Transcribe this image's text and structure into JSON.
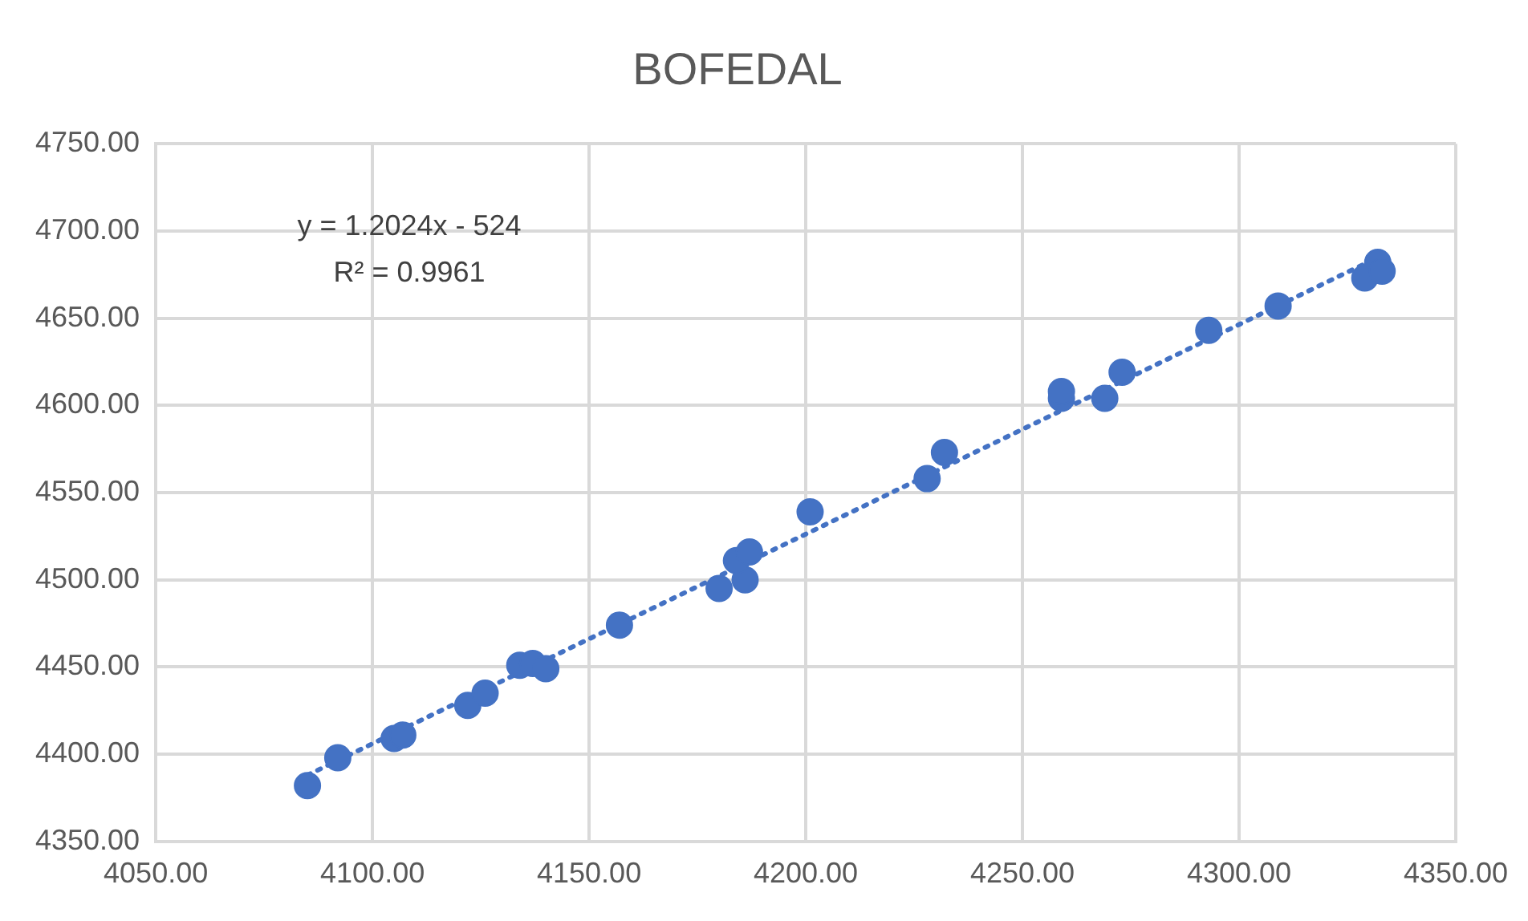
{
  "chart_data": {
    "type": "scatter",
    "title": "BOFEDAL",
    "grid": true,
    "legend": false,
    "marker": "circle",
    "xlim": [
      4050,
      4350
    ],
    "xticks": [
      {
        "value": 4050,
        "label": "4050.00"
      },
      {
        "value": 4100,
        "label": "4100.00"
      },
      {
        "value": 4150,
        "label": "4150.00"
      },
      {
        "value": 4200,
        "label": "4200.00"
      },
      {
        "value": 4250,
        "label": "4250.00"
      },
      {
        "value": 4300,
        "label": "4300.00"
      },
      {
        "value": 4350,
        "label": "4350.00"
      }
    ],
    "ylim": [
      4350,
      4750
    ],
    "yticks": [
      {
        "value": 4350,
        "label": "4350.00"
      },
      {
        "value": 4400,
        "label": "4400.00"
      },
      {
        "value": 4450,
        "label": "4450.00"
      },
      {
        "value": 4500,
        "label": "4500.00"
      },
      {
        "value": 4550,
        "label": "4550.00"
      },
      {
        "value": 4600,
        "label": "4600.00"
      },
      {
        "value": 4650,
        "label": "4650.00"
      },
      {
        "value": 4700,
        "label": "4700.00"
      },
      {
        "value": 4750,
        "label": "4750.00"
      }
    ],
    "annotations": [
      "y = 1.2024x - 524",
      "R² = 0.9961"
    ],
    "series": [
      {
        "color": "#4472c4",
        "x": [
          4085,
          4092,
          4105,
          4107,
          4122,
          4126,
          4134,
          4137,
          4140,
          4157,
          4180,
          4186,
          4184,
          4187,
          4201,
          4228,
          4232,
          4259,
          4259,
          4269,
          4273,
          4293,
          4309,
          4329,
          4332,
          4333
        ],
        "values": [
          4382,
          4398,
          4409,
          4411,
          4428,
          4435,
          4451,
          4452,
          4449,
          4474,
          4495,
          4500,
          4511,
          4516,
          4539,
          4558,
          4573,
          4604,
          4608,
          4604,
          4619,
          4643,
          4657,
          4673,
          4682,
          4677
        ]
      },
      {
        "type": "line",
        "color": "#4472c4",
        "line_style": "dotted",
        "marker": "none",
        "x": [
          4085,
          4333
        ],
        "values": [
          4388,
          4686
        ]
      }
    ]
  }
}
